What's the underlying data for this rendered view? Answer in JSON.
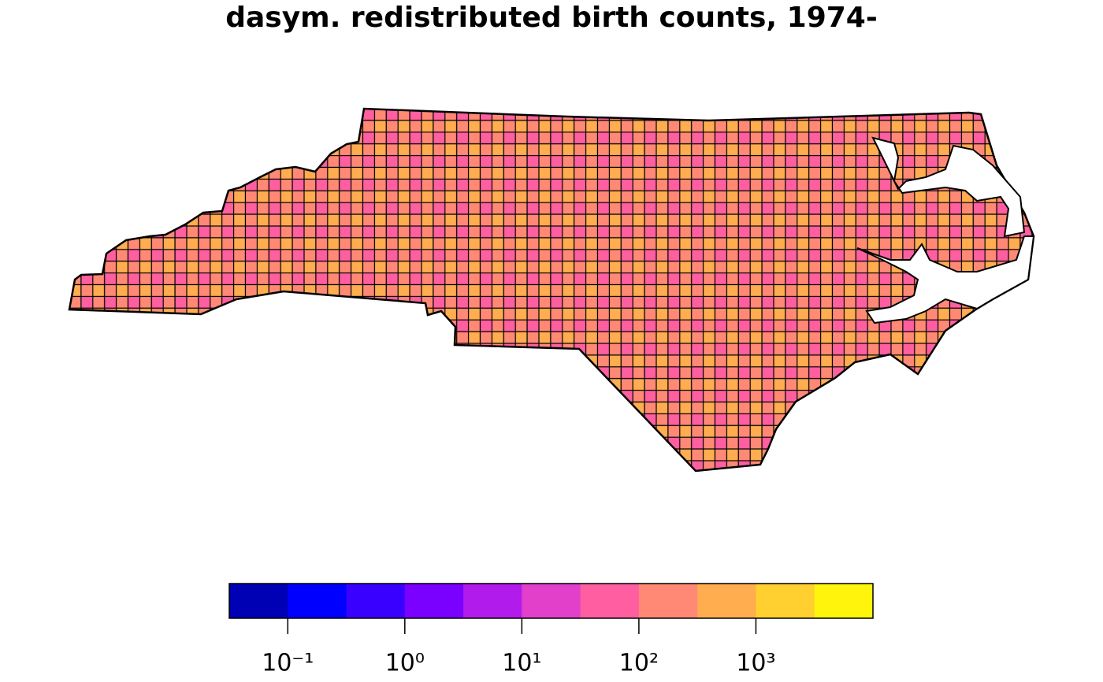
{
  "chart_data": {
    "type": "map",
    "title": "dasym. redistributed birth counts, 1974-",
    "legend": {
      "colors": [
        "#0000B4",
        "#0000FF",
        "#3A00FF",
        "#7A00FF",
        "#B11BEB",
        "#E23FCB",
        "#FF5EA0",
        "#FF8975",
        "#FFAD4E",
        "#FFD030",
        "#FFF40C"
      ],
      "log_scale": true,
      "xlim": [
        0.03162,
        10000
      ],
      "xticks": [
        {
          "value": 0.1,
          "label": "10⁻¹"
        },
        {
          "value": 1,
          "label": "10⁰"
        },
        {
          "value": 10,
          "label": "10¹"
        },
        {
          "value": 100,
          "label": "10²"
        },
        {
          "value": 1000,
          "label": "10³"
        }
      ]
    }
  }
}
